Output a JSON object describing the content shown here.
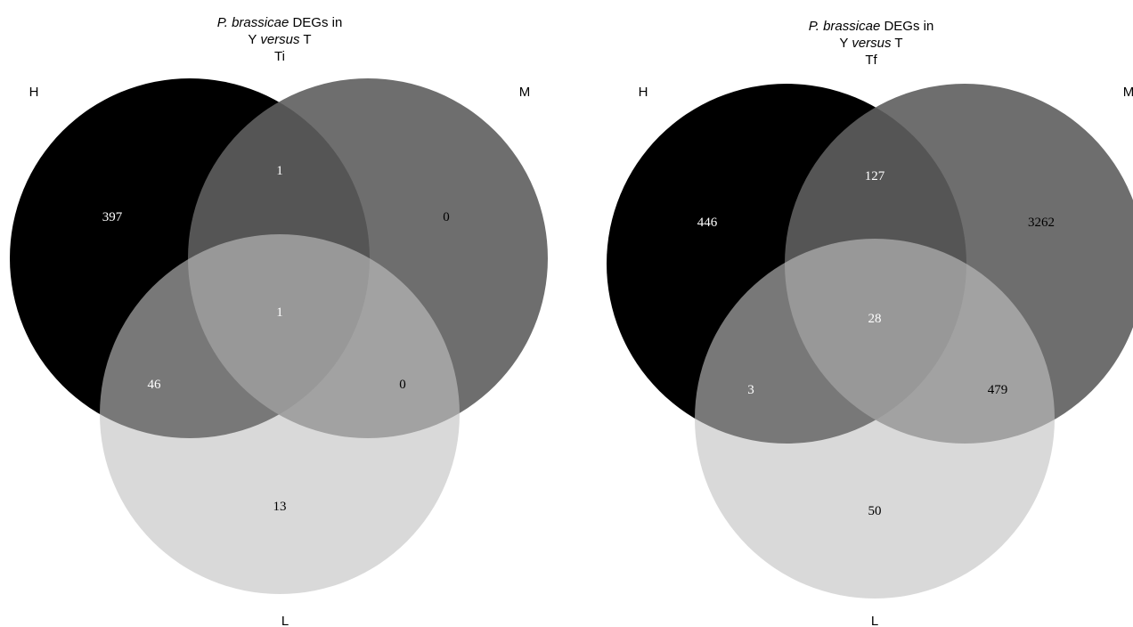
{
  "diagrams": [
    {
      "title": {
        "line1_italic": "P. brassicae",
        "line1_rest": " DEGs in",
        "line2_pre": "Y ",
        "line2_italic": "versus",
        "line2_post": " T",
        "line3": "Ti"
      },
      "set_labels": {
        "h": "H",
        "m": "M",
        "l": "L"
      },
      "regions": {
        "h_only": "397",
        "h_m": "1",
        "m_only": "0",
        "h_m_l": "1",
        "h_l": "46",
        "m_l": "0",
        "l_only": "13"
      }
    },
    {
      "title": {
        "line1_italic": "P. brassicae",
        "line1_rest": " DEGs in",
        "line2_pre": "Y ",
        "line2_italic": "versus",
        "line2_post": " T",
        "line3": "Tf"
      },
      "set_labels": {
        "h": "H",
        "m": "M",
        "l": "L"
      },
      "regions": {
        "h_only": "446",
        "h_m": "127",
        "m_only": "3262",
        "h_m_l": "28",
        "h_l": "3",
        "m_l": "479",
        "l_only": "50"
      }
    }
  ],
  "colors": {
    "set_h": "#000000",
    "set_m": "#5e5e5e",
    "set_l": "#c2c2c2"
  }
}
